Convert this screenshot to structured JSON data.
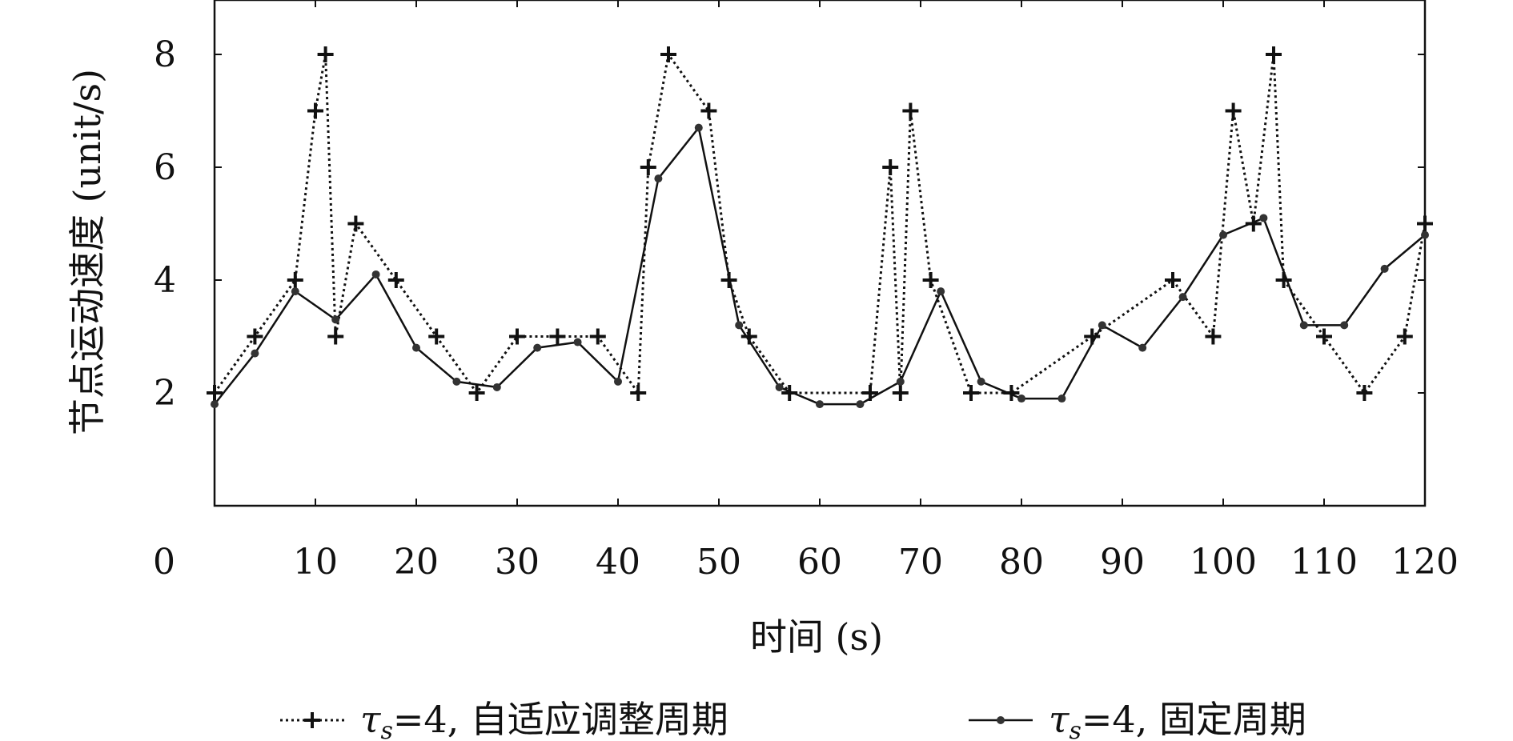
{
  "chart_data": {
    "type": "line",
    "title": "",
    "xlabel": "时间 (s)",
    "ylabel": "节点运动速度 (unit/s)",
    "xlim": [
      0,
      120
    ],
    "ylim": [
      0,
      9
    ],
    "x_ticks": [
      0,
      10,
      20,
      30,
      40,
      50,
      60,
      70,
      80,
      90,
      100,
      110,
      120
    ],
    "y_ticks": [
      2,
      4,
      6,
      8
    ],
    "grid": false,
    "legend_position": "bottom",
    "series": [
      {
        "name": "τs=4, 自适应调整周期",
        "legend_main": "τ",
        "legend_sub": "s",
        "legend_rest": "=4, 自适应调整周期",
        "style": "dotted",
        "marker": "plus",
        "color": "#111111",
        "x": [
          0,
          4,
          8,
          10,
          11,
          12,
          14,
          18,
          22,
          26,
          30,
          34,
          38,
          42,
          43,
          45,
          49,
          51,
          53,
          57,
          65,
          67,
          68,
          69,
          71,
          75,
          79,
          87,
          95,
          99,
          101,
          103,
          105,
          106,
          110,
          114,
          118,
          120
        ],
        "y": [
          2,
          3,
          4,
          7,
          8,
          3,
          5,
          4,
          3,
          2,
          3,
          3,
          3,
          2,
          6,
          8,
          7,
          4,
          3,
          2,
          2,
          6,
          2,
          7,
          4,
          2,
          2,
          3,
          4,
          3,
          7,
          5,
          8,
          4,
          3,
          2,
          3,
          5
        ]
      },
      {
        "name": "τs=4, 固定周期",
        "legend_main": "τ",
        "legend_sub": "s",
        "legend_rest": "=4, 固定周期",
        "style": "solid",
        "marker": "dot",
        "color": "#111111",
        "x": [
          0,
          4,
          8,
          12,
          16,
          20,
          24,
          28,
          32,
          36,
          40,
          44,
          48,
          52,
          56,
          60,
          64,
          68,
          72,
          76,
          80,
          84,
          88,
          92,
          96,
          100,
          104,
          108,
          112,
          116,
          120
        ],
        "y": [
          1.8,
          2.7,
          3.8,
          3.3,
          4.1,
          2.8,
          2.2,
          2.1,
          2.8,
          2.9,
          2.2,
          5.8,
          6.7,
          3.2,
          2.1,
          1.8,
          1.8,
          2.2,
          3.8,
          2.2,
          1.9,
          1.9,
          3.2,
          2.8,
          3.7,
          4.8,
          5.1,
          3.2,
          3.2,
          4.2,
          4.8
        ]
      }
    ]
  }
}
